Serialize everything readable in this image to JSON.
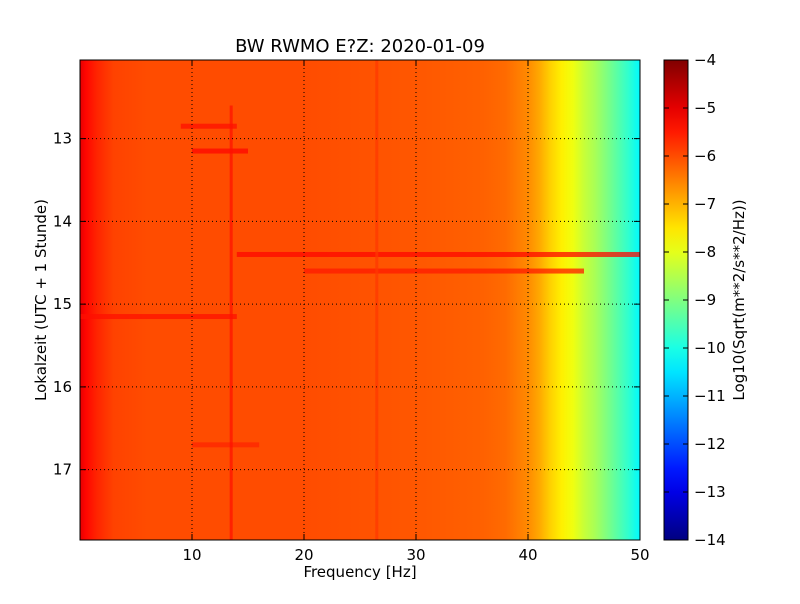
{
  "chart_data": {
    "type": "heatmap",
    "title": "BW RWMO E?Z: 2020-01-09",
    "xlabel": "Frequency [Hz]",
    "ylabel": "Lokalzeit (UTC + 1 Stunde)",
    "xlim": [
      0,
      50
    ],
    "ylim": [
      12.05,
      17.85
    ],
    "y_inverted": true,
    "x_ticks": [
      10,
      20,
      30,
      40,
      50
    ],
    "x_tick_labels": [
      "10",
      "20",
      "30",
      "40",
      "50"
    ],
    "y_ticks": [
      13,
      14,
      15,
      16,
      17
    ],
    "y_tick_labels": [
      "13",
      "14",
      "15",
      "16",
      "17"
    ],
    "grid": true,
    "colorbar": {
      "label": "Log10(Sqrt(m**2/s**2/Hz))",
      "range": [
        -14,
        -4
      ],
      "ticks": [
        -4,
        -5,
        -6,
        -7,
        -8,
        -9,
        -10,
        -11,
        -12,
        -13,
        -14
      ],
      "tick_labels": [
        "−4",
        "−5",
        "−6",
        "−7",
        "−8",
        "−9",
        "−10",
        "−11",
        "−12",
        "−13",
        "−14"
      ],
      "colormap": "jet"
    },
    "spectrum_profile": {
      "frequency_hz": [
        0,
        0.5,
        1.5,
        3,
        6,
        10,
        20,
        30,
        36,
        38,
        40,
        41,
        42,
        43,
        44,
        45,
        46,
        47,
        48,
        49,
        50
      ],
      "log_amplitude": [
        -5.0,
        -5.3,
        -5.6,
        -5.9,
        -6.0,
        -6.0,
        -6.0,
        -6.1,
        -6.2,
        -6.3,
        -6.6,
        -6.9,
        -7.3,
        -7.6,
        -7.9,
        -8.3,
        -8.6,
        -9.0,
        -9.4,
        -9.8,
        -10.3
      ]
    },
    "features": [
      {
        "kind": "horizontal_band",
        "time": 14.4,
        "freq_range": [
          14,
          50
        ],
        "log_amplitude": -5.3
      },
      {
        "kind": "horizontal_band",
        "time": 14.6,
        "freq_range": [
          20,
          45
        ],
        "log_amplitude": -5.5
      },
      {
        "kind": "horizontal_band",
        "time": 15.15,
        "freq_range": [
          0,
          14
        ],
        "log_amplitude": -5.4
      },
      {
        "kind": "horizontal_band",
        "time": 13.15,
        "freq_range": [
          10,
          15
        ],
        "log_amplitude": -5.3
      },
      {
        "kind": "horizontal_band",
        "time": 12.85,
        "freq_range": [
          9,
          14
        ],
        "log_amplitude": -5.4
      },
      {
        "kind": "horizontal_band",
        "time": 16.7,
        "freq_range": [
          10,
          16
        ],
        "log_amplitude": -5.6
      },
      {
        "kind": "vertical_line",
        "freq": 13.5,
        "time_range": [
          12.6,
          17.85
        ],
        "log_amplitude": -5.4
      },
      {
        "kind": "vertical_line",
        "freq": 26.5,
        "time_range": [
          12.05,
          17.85
        ],
        "log_amplitude": -5.8
      }
    ]
  }
}
